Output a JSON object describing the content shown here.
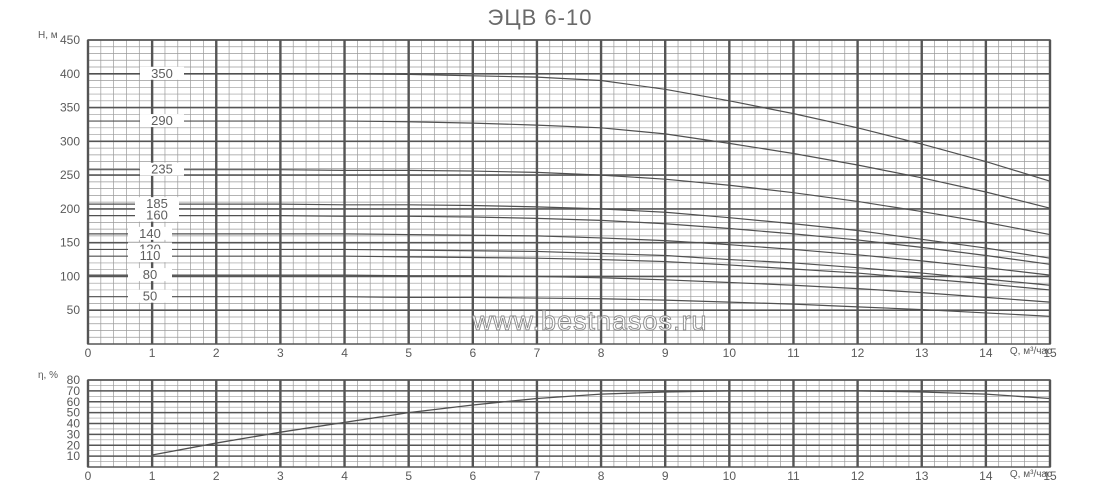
{
  "title": "ЭЦВ 6-10",
  "watermark": "www.bestnasos.ru",
  "colors": {
    "grid": "#9a9a9a",
    "major": "#555555",
    "curve": "#505050",
    "text": "#5a5a5a"
  },
  "chart_data": [
    {
      "type": "line",
      "name": "head",
      "ylabel": "Н, м",
      "xlabel": "Q, м³/час",
      "xlim": [
        0,
        15
      ],
      "ylim": [
        0,
        450
      ],
      "xticks": [
        0,
        1,
        2,
        3,
        4,
        5,
        6,
        7,
        8,
        9,
        10,
        11,
        12,
        13,
        14,
        15
      ],
      "yticks": [
        50,
        100,
        150,
        200,
        250,
        300,
        350,
        400,
        450
      ],
      "grid": true,
      "x": [
        0,
        1,
        2,
        3,
        4,
        5,
        6,
        7,
        8,
        9,
        10,
        11,
        12,
        13,
        14,
        15
      ],
      "series": [
        {
          "name": "350",
          "values": [
            400,
            400,
            400,
            400,
            400,
            399,
            397,
            395,
            390,
            377,
            360,
            341,
            320,
            296,
            270,
            241
          ]
        },
        {
          "name": "290",
          "values": [
            330,
            330,
            330,
            330,
            330,
            329,
            327,
            324,
            320,
            311,
            297,
            282,
            265,
            246,
            225,
            201
          ]
        },
        {
          "name": "235",
          "values": [
            258,
            258,
            258,
            258,
            257,
            257,
            256,
            254,
            250,
            244,
            235,
            224,
            211,
            196,
            180,
            162
          ]
        },
        {
          "name": "185",
          "values": [
            207,
            207,
            207,
            207,
            206,
            206,
            205,
            203,
            200,
            195,
            187,
            178,
            168,
            155,
            142,
            127
          ]
        },
        {
          "name": "160",
          "values": [
            190,
            190,
            190,
            190,
            189,
            189,
            188,
            186,
            183,
            178,
            171,
            163,
            154,
            143,
            131,
            118
          ]
        },
        {
          "name": "140",
          "values": [
            163,
            163,
            163,
            163,
            163,
            162,
            161,
            160,
            157,
            153,
            147,
            140,
            132,
            123,
            113,
            102
          ]
        },
        {
          "name": "120",
          "values": [
            140,
            140,
            140,
            140,
            140,
            139,
            138,
            137,
            134,
            131,
            125,
            120,
            113,
            105,
            96,
            87
          ]
        },
        {
          "name": "110",
          "values": [
            130,
            130,
            130,
            130,
            130,
            129,
            128,
            127,
            125,
            122,
            117,
            111,
            105,
            97,
            89,
            80
          ]
        },
        {
          "name": "80",
          "values": [
            102,
            102,
            102,
            102,
            102,
            101,
            101,
            100,
            98,
            95,
            91,
            87,
            82,
            76,
            69,
            62
          ]
        },
        {
          "name": "50",
          "values": [
            70,
            70,
            70,
            70,
            70,
            69,
            69,
            68,
            67,
            65,
            62,
            59,
            55,
            51,
            46,
            41
          ]
        }
      ]
    },
    {
      "type": "line",
      "name": "efficiency",
      "ylabel": "η, %",
      "xlabel": "Q, м³/час",
      "xlim": [
        0,
        15
      ],
      "ylim": [
        0,
        80
      ],
      "xticks": [
        0,
        1,
        2,
        3,
        4,
        5,
        6,
        7,
        8,
        9,
        10,
        11,
        12,
        13,
        14,
        15
      ],
      "yticks": [
        10,
        20,
        30,
        40,
        50,
        60,
        70,
        80
      ],
      "grid": true,
      "x": [
        1,
        2,
        3,
        4,
        5,
        6,
        7,
        8,
        9,
        10,
        11,
        12,
        13,
        14,
        15
      ],
      "values": [
        11,
        22,
        32,
        41,
        50,
        57,
        63,
        67,
        69,
        70,
        70,
        70,
        69,
        67,
        63
      ]
    }
  ]
}
